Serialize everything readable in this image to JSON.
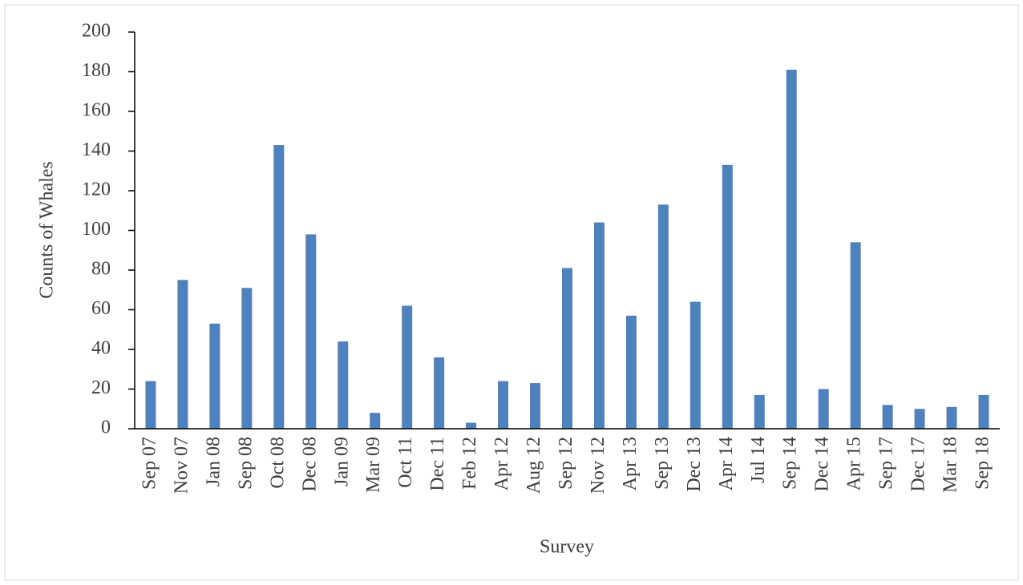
{
  "chart_data": {
    "type": "bar",
    "x_label": "Survey",
    "y_label": "Counts of Whales",
    "categories": [
      "Sep 07",
      "Nov 07",
      "Jan 08",
      "Sep 08",
      "Oct 08",
      "Dec 08",
      "Jan 09",
      "Mar 09",
      "Oct 11",
      "Dec 11",
      "Feb 12",
      "Apr 12",
      "Aug 12",
      "Sep 12",
      "Nov 12",
      "Apr 13",
      "Sep 13",
      "Dec 13",
      "Apr 14",
      "Jul 14",
      "Sep 14",
      "Dec 14",
      "Apr 15",
      "Sep 17",
      "Dec 17",
      "Mar 18",
      "Sep 18"
    ],
    "values": [
      24,
      75,
      53,
      71,
      143,
      98,
      44,
      8,
      62,
      36,
      3,
      24,
      23,
      81,
      104,
      57,
      113,
      64,
      133,
      17,
      181,
      20,
      94,
      12,
      10,
      11,
      17
    ],
    "color": "#4f81bd",
    "ylim": [
      0,
      200
    ],
    "yticks": [
      0,
      20,
      40,
      60,
      80,
      100,
      120,
      140,
      160,
      180,
      200
    ],
    "grid": false
  }
}
